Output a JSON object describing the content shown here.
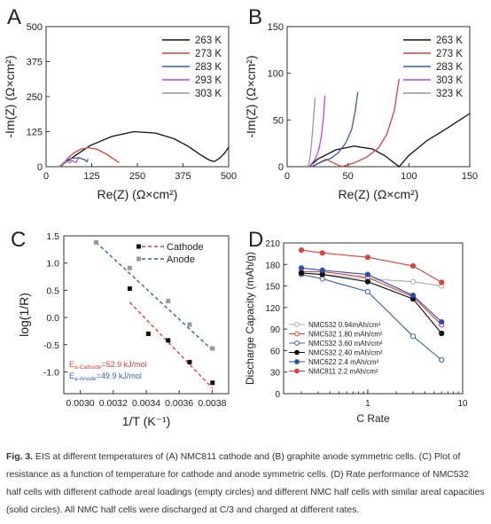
{
  "figure": {
    "caption_label": "Fig. 3.",
    "caption_text": " EIS at different temperatures of (A) NMC811 cathode and (B) graphite anode symmetric cells. (C) Plot of resistance as a function of temperature for cathode and anode symmetric cells. (D) Rate performance of NMC532 half cells with different cathode areal loadings (empty circles) and different NMC half cells with similar areal capacities (solid circles). All NMC half cells were discharged at C/3 and charged at different rates."
  },
  "chart_data": [
    {
      "panel": "A",
      "type": "line",
      "xlabel": "Re(Z) (Ω×cm²)",
      "ylabel": "-Im(Z) (Ω×cm²)",
      "xlim": [
        0,
        500
      ],
      "ylim": [
        0,
        500
      ],
      "xticks": [
        "0",
        "125",
        "250",
        "375",
        "500"
      ],
      "yticks": [
        "0",
        "125",
        "250",
        "375",
        "500"
      ],
      "legend_position": "top-right",
      "series": [
        {
          "name": "263 K",
          "color": "#111111",
          "x": [
            38,
            50,
            80,
            120,
            180,
            240,
            300,
            350,
            390,
            420,
            445,
            460,
            475,
            490,
            500
          ],
          "y": [
            0,
            12,
            40,
            75,
            108,
            125,
            120,
            100,
            72,
            45,
            25,
            18,
            30,
            50,
            70
          ]
        },
        {
          "name": "273 K",
          "color": "#d9413a",
          "x": [
            40,
            48,
            60,
            75,
            95,
            115,
            140,
            165,
            185,
            200
          ],
          "y": [
            0,
            10,
            30,
            48,
            62,
            68,
            62,
            45,
            28,
            15
          ]
        },
        {
          "name": "283 K",
          "color": "#3a5fa8",
          "x": [
            35,
            42,
            55,
            70,
            90,
            105,
            112,
            115
          ],
          "y": [
            0,
            8,
            22,
            30,
            32,
            25,
            18,
            28
          ]
        },
        {
          "name": "293 K",
          "color": "#c448c8",
          "x": [
            35,
            42,
            55,
            65,
            75,
            82,
            88
          ],
          "y": [
            0,
            8,
            18,
            22,
            20,
            15,
            30
          ]
        },
        {
          "name": "303 K",
          "color": "#999999",
          "x": [
            35,
            40,
            48,
            55,
            60,
            66,
            72
          ],
          "y": [
            0,
            6,
            14,
            18,
            16,
            12,
            25
          ]
        }
      ]
    },
    {
      "panel": "B",
      "type": "line",
      "xlabel": "Re(Z) (Ω×cm²)",
      "ylabel": "-Im(Z) (Ω×cm²)",
      "xlim": [
        0,
        150
      ],
      "ylim": [
        0,
        150
      ],
      "xticks": [
        "0",
        "50",
        "100",
        "150"
      ],
      "yticks": [
        "0",
        "50",
        "100",
        "150"
      ],
      "legend_position": "top-right",
      "series": [
        {
          "name": "263 K",
          "color": "#111111",
          "x": [
            18,
            25,
            40,
            55,
            70,
            80,
            88,
            92,
            100,
            115,
            130,
            150
          ],
          "y": [
            0,
            8,
            18,
            22,
            19,
            12,
            4,
            0,
            12,
            28,
            40,
            57
          ]
        },
        {
          "name": "273 K",
          "color": "#d9413a",
          "x": [
            20,
            26,
            32,
            38,
            45,
            55,
            65,
            75,
            82,
            88,
            92
          ],
          "y": [
            0,
            4,
            8,
            4,
            0,
            4,
            10,
            20,
            35,
            60,
            94
          ]
        },
        {
          "name": "283 K",
          "color": "#3a5fa8",
          "x": [
            20,
            25,
            30,
            36,
            42,
            48,
            53,
            56,
            58
          ],
          "y": [
            0,
            3,
            6,
            9,
            15,
            25,
            40,
            60,
            80
          ]
        },
        {
          "name": "303 K",
          "color": "#c448c8",
          "x": [
            18,
            20,
            23,
            26,
            28,
            30,
            31
          ],
          "y": [
            0,
            3,
            8,
            18,
            32,
            55,
            76
          ]
        },
        {
          "name": "323 K",
          "color": "#999999",
          "x": [
            17,
            18,
            19,
            20,
            21,
            22,
            23
          ],
          "y": [
            0,
            4,
            12,
            25,
            40,
            58,
            74
          ]
        }
      ]
    },
    {
      "panel": "C",
      "type": "scatter",
      "xlabel": "1/T (K⁻¹)",
      "ylabel": "log(1/R)",
      "xlim": [
        0.0029,
        0.0039
      ],
      "ylim": [
        -1.4,
        1.5
      ],
      "xticks": [
        0.003,
        0.0032,
        0.0034,
        0.0036,
        0.0038
      ],
      "xtick_labels": [
        "0.0030",
        "0.0032",
        "0.0034",
        "0.0036",
        "0.0038"
      ],
      "yticks": [
        -1.0,
        -0.5,
        0.0,
        0.5,
        1.0,
        1.5
      ],
      "ytick_labels": [
        "-1.0",
        "-0.5",
        "0.0",
        "0.5",
        "1.0",
        "1.5"
      ],
      "legend_position": "top-right",
      "series": [
        {
          "name": "Cathode",
          "color": "#d9413a",
          "marker": "square",
          "point_color": "#111111",
          "x": [
            0.0033,
            0.003413,
            0.003533,
            0.003663,
            0.003802
          ],
          "y": [
            0.53,
            -0.3,
            -0.42,
            -0.82,
            -1.2
          ],
          "fit": [
            [
              0.0033,
              0.28
            ],
            [
              0.003802,
              -1.3
            ]
          ]
        },
        {
          "name": "Anode",
          "color": "#3a5fa8",
          "marker": "square",
          "point_color": "#999999",
          "x": [
            0.003096,
            0.0033,
            0.003533,
            0.003663,
            0.003802
          ],
          "y": [
            1.38,
            0.91,
            0.3,
            -0.13,
            -0.57
          ],
          "fit": [
            [
              0.003096,
              1.38
            ],
            [
              0.003802,
              -0.6
            ]
          ]
        }
      ],
      "annotations": [
        {
          "base": "E",
          "sub": "a-Cathode",
          "rest": "=52.9 kJ/mol",
          "color": "#d9413a"
        },
        {
          "base": "E",
          "sub": "a-Anode",
          "rest": "=49.9 kJ/mol",
          "color": "#3a5fa8"
        }
      ]
    },
    {
      "panel": "D",
      "type": "line",
      "xlabel": "C Rate",
      "ylabel": "Discharge Capacity (mAh/g)",
      "xscale": "log",
      "xlim": [
        0.13,
        10
      ],
      "ylim": [
        0,
        210
      ],
      "xticks": [
        1,
        10
      ],
      "xtick_labels": [
        "1",
        "10"
      ],
      "yticks": [
        0,
        30,
        60,
        90,
        120,
        150,
        180,
        210
      ],
      "ytick_labels": [
        "0",
        "30",
        "60",
        "90",
        "120",
        "150",
        "180",
        "210"
      ],
      "legend_position": "bottom-left",
      "x": [
        0.2,
        0.333,
        1,
        3,
        6
      ],
      "series": [
        {
          "name": "NMC532 0.94mAh/cm²",
          "color": "#aaaaaa",
          "filled": false,
          "values": [
            168,
            166,
            160,
            156,
            150
          ]
        },
        {
          "name": "NMC532 1.80 mAh/cm²",
          "color": "#d9413a",
          "filled": false,
          "values": [
            170,
            170,
            162,
            135,
            96
          ]
        },
        {
          "name": "NMC532 3.60 mAh/cm²",
          "color": "#3a5fa8",
          "filled": false,
          "values": [
            166,
            160,
            142,
            80,
            47
          ]
        },
        {
          "name": "NMC532 2.40 mAh/cm²",
          "color": "#111111",
          "filled": true,
          "values": [
            168,
            166,
            156,
            132,
            84
          ]
        },
        {
          "name": "NMC622 2.4 mAh/cm²",
          "color": "#2b4fb0",
          "filled": true,
          "values": [
            175,
            172,
            166,
            137,
            100
          ]
        },
        {
          "name": "NMC811 2.2 mAh/cm²",
          "color": "#d9413a",
          "filled": true,
          "values": [
            200,
            196,
            190,
            178,
            155
          ]
        }
      ]
    }
  ]
}
